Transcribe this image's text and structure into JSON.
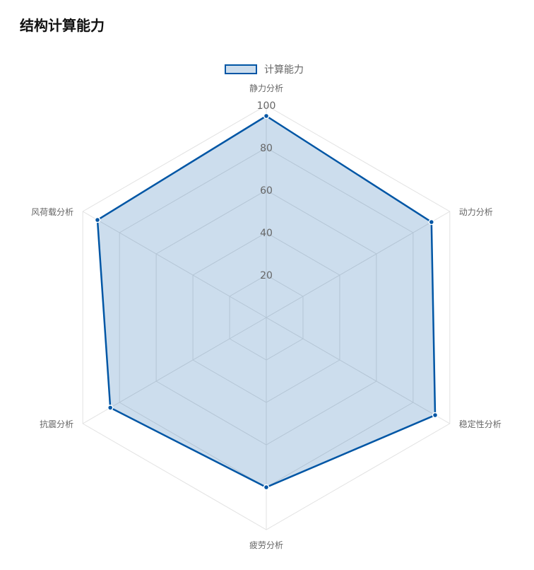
{
  "chart_data": {
    "type": "radar",
    "title": "结构计算能力",
    "categories": [
      "静力分析",
      "动力分析",
      "稳定性分析",
      "疲劳分析",
      "抗震分析",
      "风荷载分析"
    ],
    "series": [
      {
        "name": "计算能力",
        "values": [
          95,
          90,
          92,
          80,
          85,
          92
        ]
      }
    ],
    "range": [
      0,
      100
    ],
    "ticks": [
      "20",
      "40",
      "60",
      "80",
      "100"
    ],
    "legend_position": "top-center",
    "grid": true,
    "colors": {
      "line": "#0056a5",
      "fill": "rgba(0, 86, 165, 0.2)",
      "grid": "#e2e2e2",
      "point_border": "#ffffff"
    }
  }
}
